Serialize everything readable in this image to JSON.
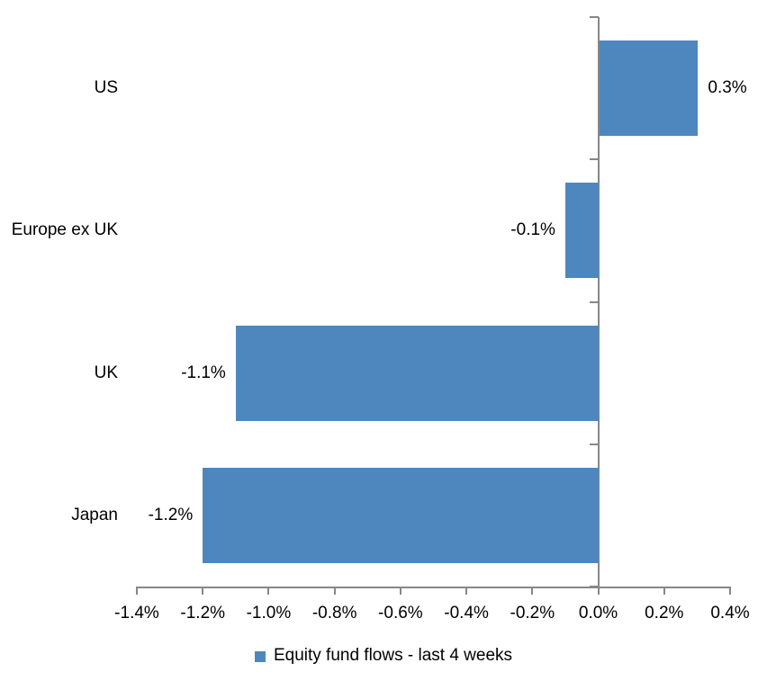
{
  "chart_data": {
    "type": "bar",
    "orientation": "horizontal",
    "title": "",
    "xlabel": "",
    "ylabel": "",
    "categories": [
      "US",
      "Europe ex UK",
      "UK",
      "Japan"
    ],
    "values": [
      0.3,
      -0.1,
      -1.1,
      -1.2
    ],
    "data_labels": [
      "0.3%",
      "-0.1%",
      "-1.1%",
      "-1.2%"
    ],
    "series_name": "Equity fund flows - last 4 weeks",
    "xlim": [
      -1.4,
      0.4
    ],
    "x_tick_values": [
      -1.4,
      -1.2,
      -1.0,
      -0.8,
      -0.6,
      -0.4,
      -0.2,
      0.0,
      0.2,
      0.4
    ],
    "x_ticks": [
      "-1.4%",
      "-1.2%",
      "-1.0%",
      "-0.8%",
      "-0.6%",
      "-0.4%",
      "-0.2%",
      "0.0%",
      "0.2%",
      "0.4%"
    ],
    "grid": false,
    "legend_position": "bottom",
    "bar_color": "#4E87BE",
    "axis_color": "#878787",
    "text_color": "#000000"
  },
  "legend": {
    "label": "Equity fund flows - last 4 weeks"
  }
}
